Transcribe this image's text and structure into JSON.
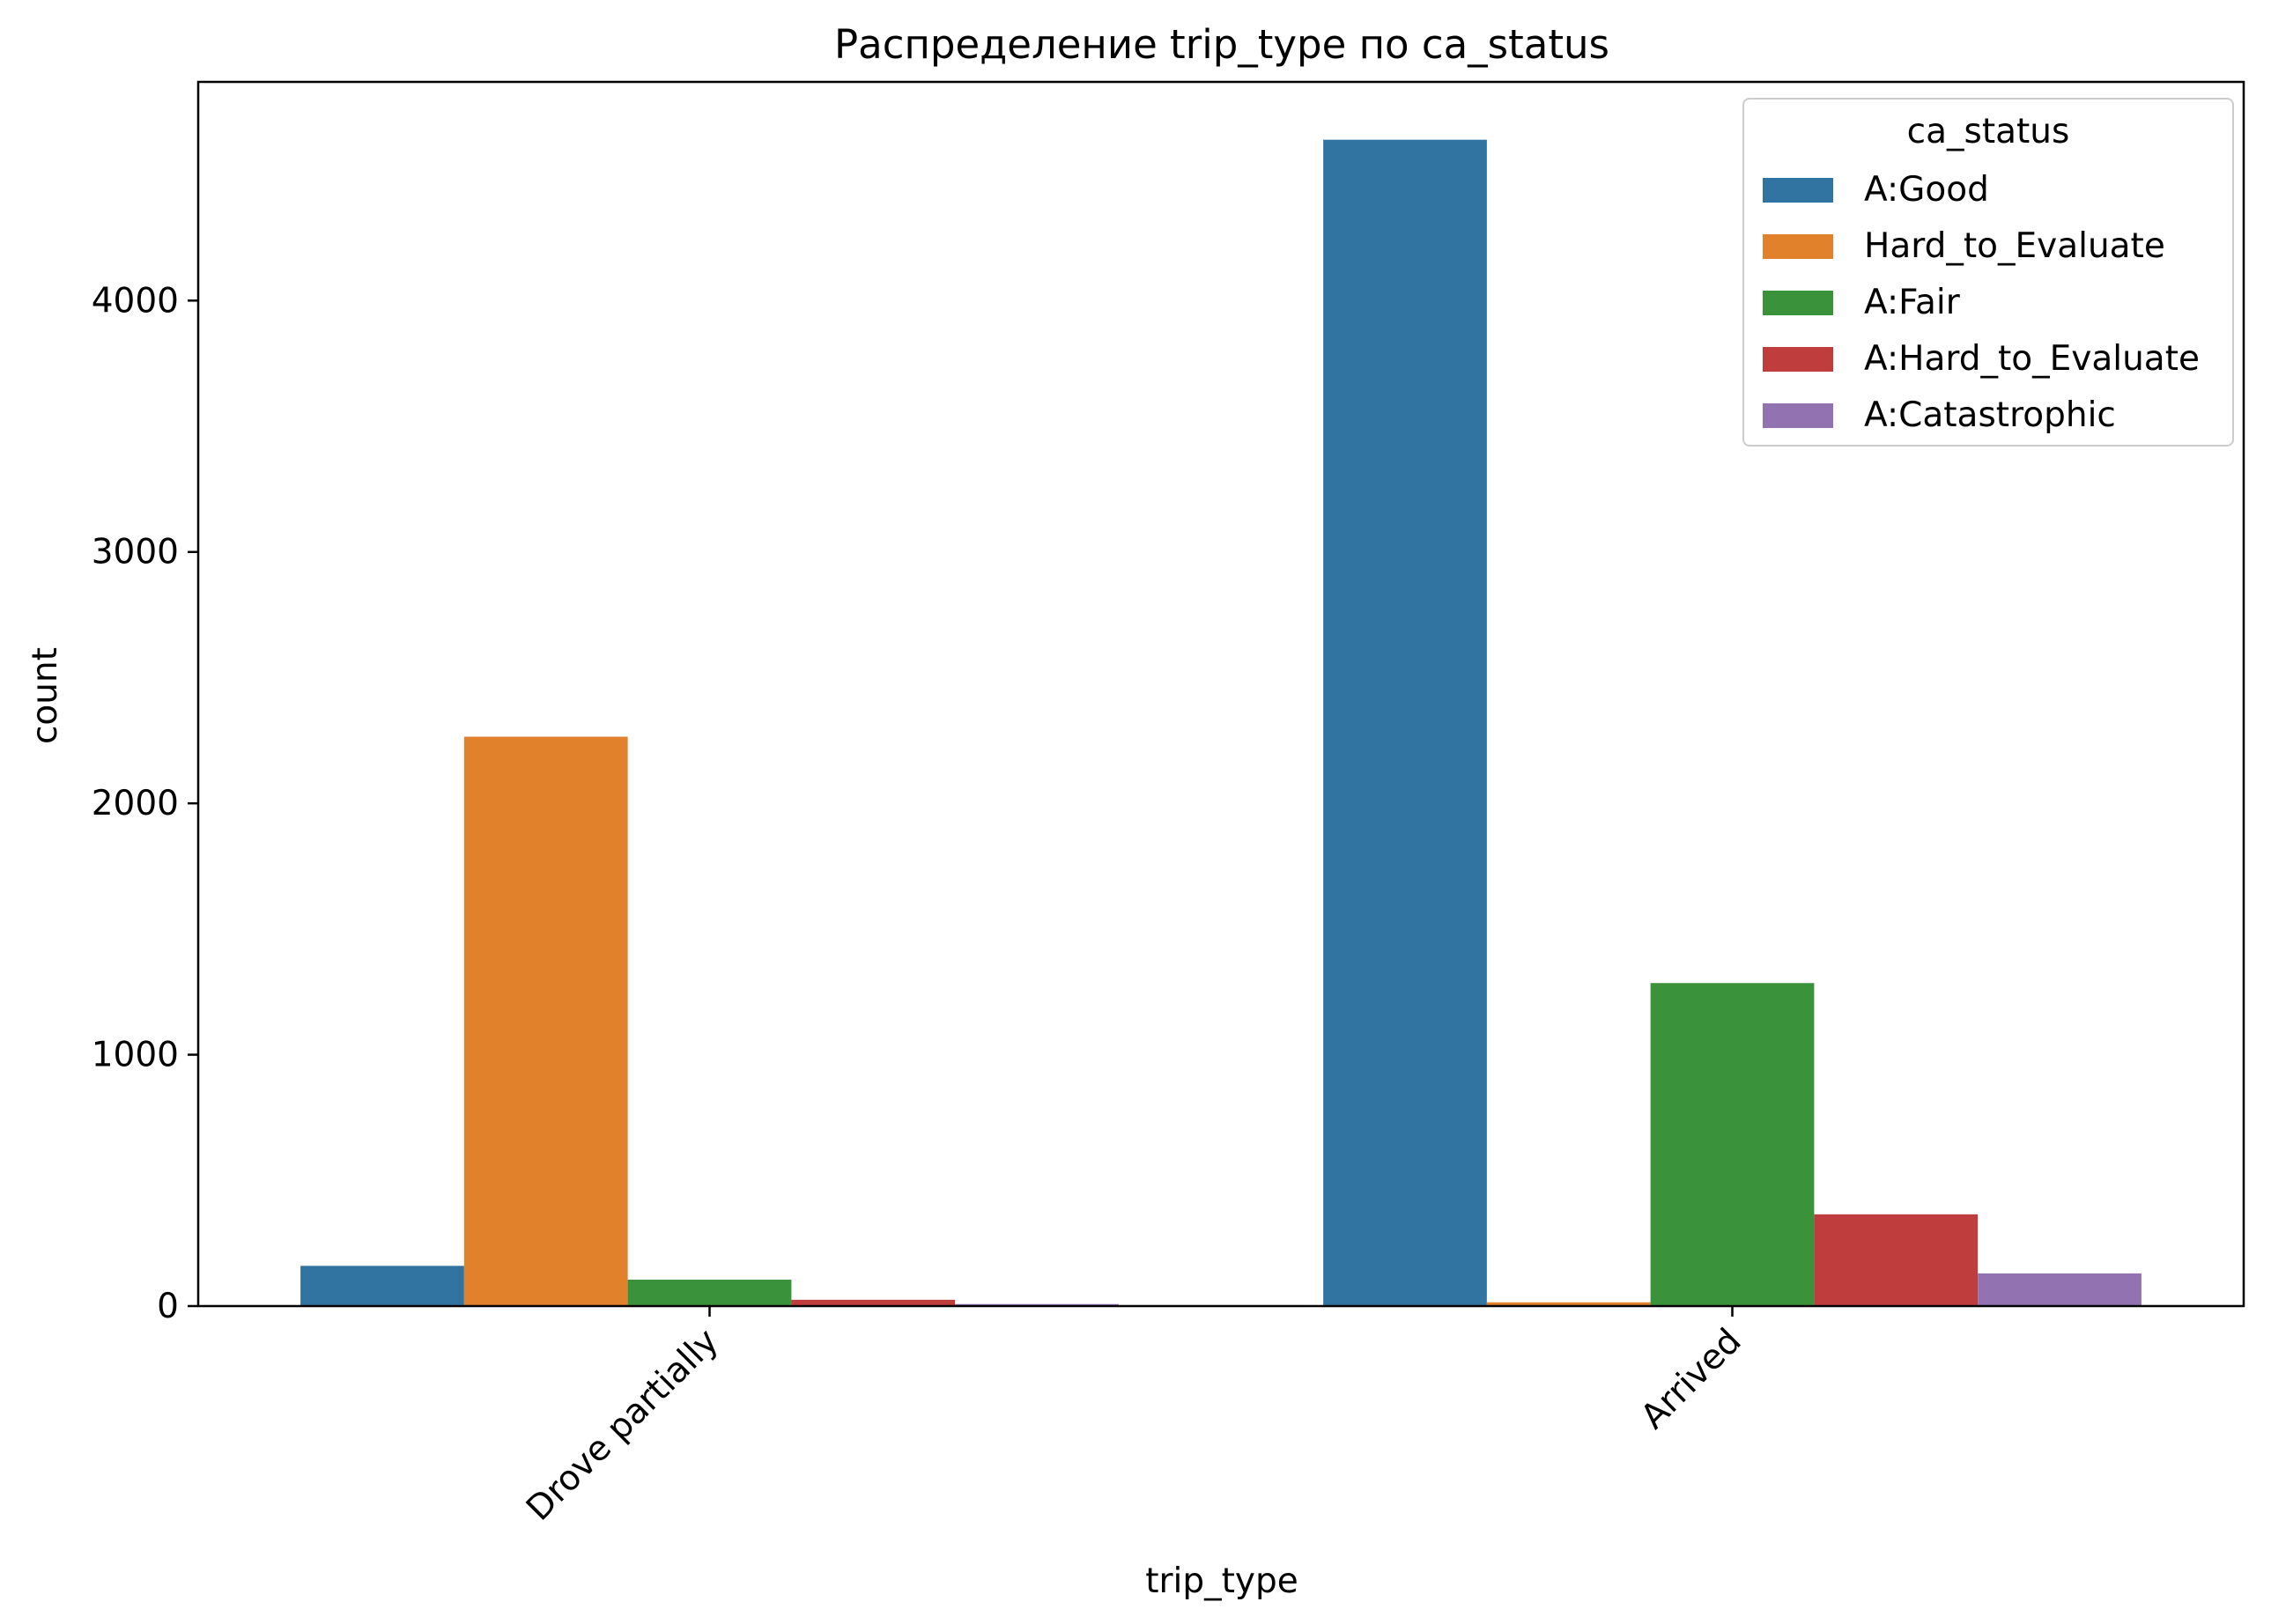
{
  "chart_data": {
    "type": "bar",
    "title": "Распределение trip_type по ca_status",
    "xlabel": "trip_type",
    "ylabel": "count",
    "categories": [
      "Drove partially",
      "Arrived"
    ],
    "series": [
      {
        "name": "A:Good",
        "color": "#3274a1",
        "values": [
          160,
          4640
        ]
      },
      {
        "name": "Hard_to_Evaluate",
        "color": "#e1812c",
        "values": [
          2265,
          15
        ]
      },
      {
        "name": "A:Fair",
        "color": "#3a923a",
        "values": [
          105,
          1285
        ]
      },
      {
        "name": "A:Hard_to_Evaluate",
        "color": "#c03d3e",
        "values": [
          25,
          365
        ]
      },
      {
        "name": "A:Catastrophic",
        "color": "#9372b2",
        "values": [
          8,
          130
        ]
      }
    ],
    "ylim": [
      0,
      4870
    ],
    "yticks": [
      0,
      1000,
      2000,
      3000,
      4000
    ],
    "ytick_labels": [
      "0",
      "1000",
      "2000",
      "3000",
      "4000"
    ],
    "grid": false,
    "legend": {
      "title": "ca_status",
      "position": "top-right"
    }
  }
}
